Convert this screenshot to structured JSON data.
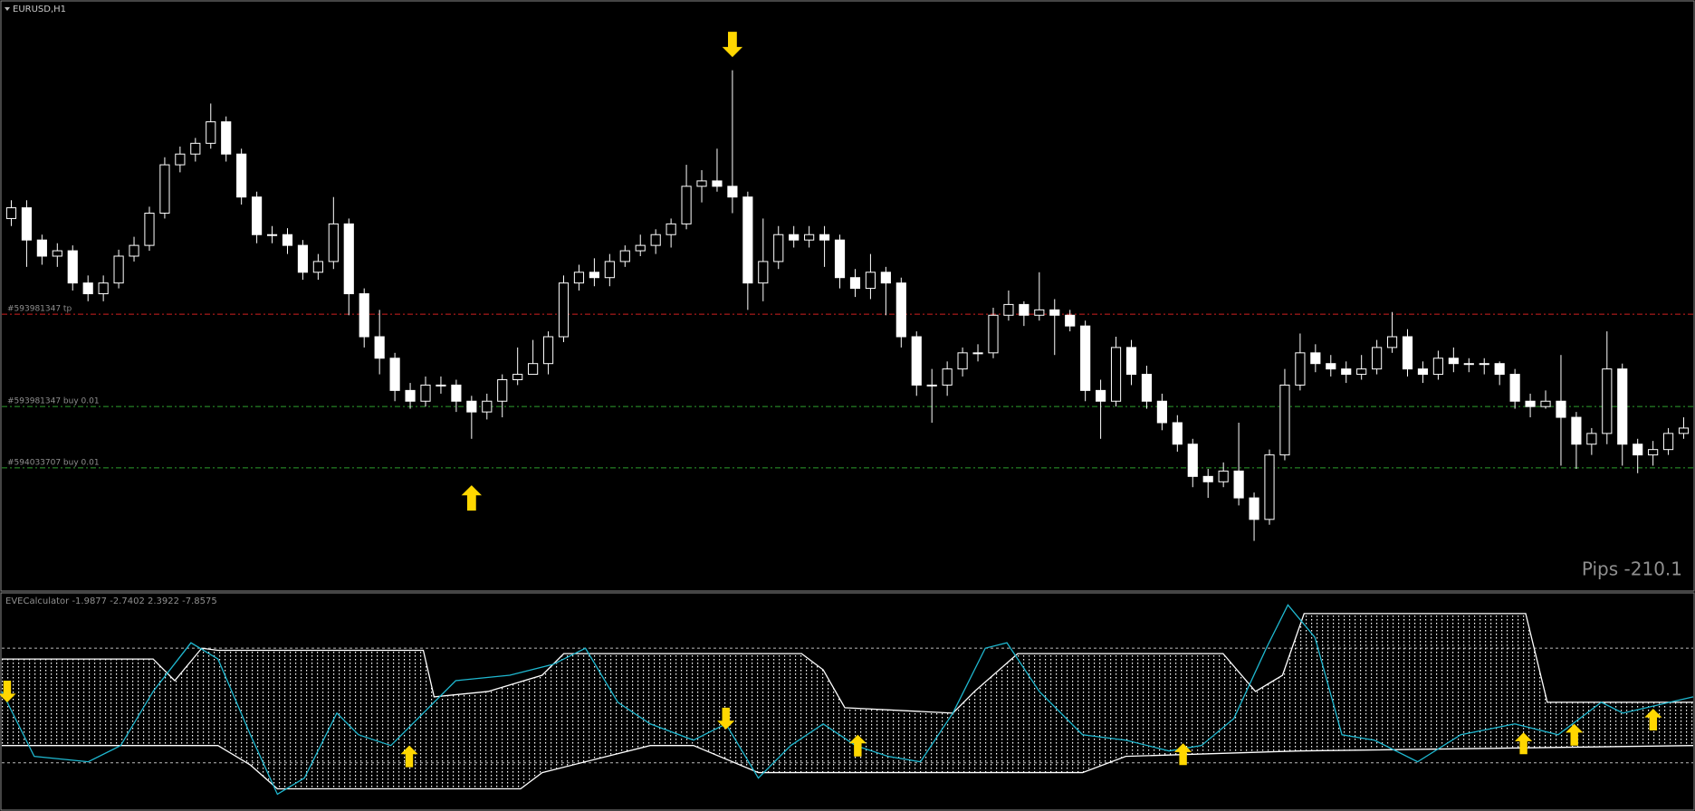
{
  "chart_data": [
    {
      "type": "candlestick",
      "title": "EURUSD,H1",
      "ylim": [
        0,
        545
      ],
      "candles": [
        [
          345,
          362,
          338,
          355
        ],
        [
          355,
          362,
          300,
          325
        ],
        [
          325,
          330,
          302,
          310
        ],
        [
          310,
          322,
          300,
          315
        ],
        [
          315,
          320,
          278,
          285
        ],
        [
          285,
          292,
          268,
          275
        ],
        [
          275,
          292,
          268,
          285
        ],
        [
          285,
          316,
          280,
          310
        ],
        [
          310,
          328,
          305,
          320
        ],
        [
          320,
          356,
          315,
          350
        ],
        [
          350,
          402,
          345,
          395
        ],
        [
          395,
          412,
          388,
          405
        ],
        [
          405,
          420,
          398,
          415
        ],
        [
          415,
          452,
          410,
          435
        ],
        [
          435,
          440,
          398,
          405
        ],
        [
          405,
          410,
          358,
          365
        ],
        [
          365,
          370,
          322,
          330
        ],
        [
          330,
          338,
          322,
          330
        ],
        [
          330,
          336,
          312,
          320
        ],
        [
          320,
          325,
          288,
          295
        ],
        [
          295,
          312,
          288,
          305
        ],
        [
          305,
          365,
          298,
          340
        ],
        [
          340,
          345,
          255,
          275
        ],
        [
          275,
          280,
          225,
          235
        ],
        [
          235,
          260,
          200,
          215
        ],
        [
          215,
          220,
          175,
          185
        ],
        [
          185,
          192,
          168,
          175
        ],
        [
          175,
          198,
          170,
          190
        ],
        [
          190,
          198,
          182,
          190
        ],
        [
          190,
          195,
          165,
          175
        ],
        [
          175,
          180,
          140,
          165
        ],
        [
          165,
          182,
          158,
          175
        ],
        [
          175,
          200,
          160,
          195
        ],
        [
          195,
          225,
          190,
          200
        ],
        [
          200,
          232,
          200,
          210
        ],
        [
          210,
          240,
          200,
          235
        ],
        [
          235,
          292,
          230,
          285
        ],
        [
          285,
          302,
          278,
          295
        ],
        [
          295,
          308,
          282,
          290
        ],
        [
          290,
          312,
          282,
          305
        ],
        [
          305,
          320,
          300,
          315
        ],
        [
          315,
          330,
          310,
          320
        ],
        [
          320,
          335,
          312,
          330
        ],
        [
          330,
          345,
          318,
          340
        ],
        [
          340,
          395,
          335,
          375
        ],
        [
          375,
          390,
          360,
          380
        ],
        [
          380,
          410,
          370,
          375
        ],
        [
          375,
          483,
          350,
          365
        ],
        [
          365,
          370,
          260,
          285
        ],
        [
          285,
          345,
          268,
          305
        ],
        [
          305,
          338,
          298,
          330
        ],
        [
          330,
          338,
          318,
          325
        ],
        [
          325,
          338,
          318,
          330
        ],
        [
          330,
          338,
          300,
          325
        ],
        [
          325,
          330,
          280,
          290
        ],
        [
          290,
          298,
          272,
          280
        ],
        [
          280,
          312,
          270,
          295
        ],
        [
          295,
          300,
          255,
          285
        ],
        [
          285,
          290,
          225,
          235
        ],
        [
          235,
          240,
          180,
          190
        ],
        [
          190,
          205,
          155,
          190
        ],
        [
          190,
          212,
          180,
          205
        ],
        [
          205,
          225,
          198,
          220
        ],
        [
          220,
          228,
          212,
          220
        ],
        [
          220,
          262,
          215,
          255
        ],
        [
          255,
          278,
          250,
          265
        ],
        [
          265,
          268,
          245,
          255
        ],
        [
          255,
          295,
          250,
          260
        ],
        [
          260,
          270,
          218,
          255
        ],
        [
          255,
          260,
          240,
          245
        ],
        [
          245,
          250,
          175,
          185
        ],
        [
          185,
          195,
          140,
          175
        ],
        [
          175,
          235,
          170,
          225
        ],
        [
          225,
          232,
          190,
          200
        ],
        [
          200,
          208,
          168,
          175
        ],
        [
          175,
          182,
          148,
          155
        ],
        [
          155,
          162,
          128,
          135
        ],
        [
          135,
          140,
          95,
          105
        ],
        [
          105,
          112,
          85,
          100
        ],
        [
          100,
          118,
          95,
          110
        ],
        [
          110,
          155,
          78,
          85
        ],
        [
          85,
          90,
          45,
          65
        ],
        [
          65,
          130,
          60,
          125
        ],
        [
          125,
          205,
          120,
          190
        ],
        [
          190,
          238,
          185,
          220
        ],
        [
          220,
          228,
          202,
          210
        ],
        [
          210,
          218,
          198,
          205
        ],
        [
          205,
          212,
          192,
          200
        ],
        [
          200,
          218,
          195,
          205
        ],
        [
          205,
          232,
          200,
          225
        ],
        [
          225,
          258,
          220,
          235
        ],
        [
          235,
          242,
          198,
          205
        ],
        [
          205,
          212,
          192,
          200
        ],
        [
          200,
          222,
          195,
          215
        ],
        [
          215,
          225,
          202,
          210
        ],
        [
          210,
          215,
          202,
          210
        ],
        [
          210,
          215,
          200,
          210
        ],
        [
          210,
          212,
          190,
          200
        ],
        [
          200,
          205,
          168,
          175
        ],
        [
          175,
          182,
          160,
          170
        ],
        [
          170,
          185,
          168,
          175
        ],
        [
          175,
          218,
          115,
          160
        ],
        [
          160,
          165,
          112,
          135
        ],
        [
          135,
          150,
          125,
          145
        ],
        [
          145,
          240,
          135,
          205
        ],
        [
          205,
          210,
          115,
          135
        ],
        [
          135,
          140,
          108,
          125
        ],
        [
          125,
          138,
          115,
          130
        ],
        [
          130,
          150,
          125,
          145
        ],
        [
          145,
          160,
          140,
          150
        ]
      ],
      "order_lines": [
        {
          "label": "#593981347 tp",
          "value": 256,
          "color": "#d02020"
        },
        {
          "label": "#593981347 buy 0.01",
          "value": 170,
          "color": "#2e9e2e"
        },
        {
          "label": "#594033707 buy 0.01",
          "value": 113,
          "color": "#2e9e2e"
        }
      ],
      "signals": [
        {
          "index": 30,
          "value": 85,
          "direction": "up"
        },
        {
          "index": 47,
          "value": 507,
          "direction": "down"
        }
      ],
      "annotation": "Pips -210.1"
    },
    {
      "type": "line",
      "title": "EVECalculator -1.9877 -2.7402 2.3922 -7.8575",
      "xlim": [
        0,
        1565
      ],
      "ylim": [
        0,
        200
      ],
      "levels": [
        148,
        42
      ],
      "series": [
        {
          "name": "upper",
          "color": "#ffffff",
          "x": [
            0,
            140,
            160,
            185,
            200,
            390,
            400,
            450,
            500,
            520,
            540,
            740,
            760,
            780,
            880,
            900,
            940,
            1130,
            1160,
            1185,
            1205,
            1410,
            1430,
            1565
          ],
          "values": [
            138,
            138,
            118,
            148,
            146,
            146,
            103,
            108,
            123,
            143,
            143,
            143,
            128,
            93,
            88,
            108,
            143,
            143,
            108,
            123,
            180,
            180,
            98,
            98
          ]
        },
        {
          "name": "lower",
          "color": "#ffffff",
          "x": [
            0,
            100,
            200,
            230,
            255,
            480,
            500,
            600,
            640,
            700,
            1000,
            1040,
            1200,
            1565
          ],
          "values": [
            58,
            58,
            58,
            40,
            18,
            18,
            33,
            58,
            58,
            33,
            33,
            48,
            53,
            58
          ]
        },
        {
          "name": "signal",
          "color": "#1fb8d0",
          "x": [
            0,
            30,
            80,
            110,
            140,
            175,
            200,
            230,
            255,
            280,
            310,
            330,
            360,
            400,
            420,
            470,
            510,
            540,
            570,
            600,
            640,
            670,
            700,
            730,
            760,
            790,
            820,
            850,
            880,
            910,
            930,
            960,
            1000,
            1040,
            1080,
            1110,
            1140,
            1170,
            1190,
            1215,
            1240,
            1270,
            1310,
            1350,
            1400,
            1440,
            1480,
            1500,
            1565
          ],
          "values": [
            108,
            48,
            43,
            58,
            108,
            153,
            138,
            68,
            13,
            28,
            88,
            68,
            58,
            98,
            118,
            123,
            133,
            148,
            98,
            78,
            63,
            78,
            28,
            58,
            78,
            58,
            48,
            43,
            88,
            148,
            153,
            108,
            68,
            63,
            53,
            58,
            83,
            148,
            188,
            158,
            68,
            63,
            43,
            68,
            78,
            68,
            98,
            88,
            103
          ]
        }
      ],
      "signals": [
        {
          "x": 5,
          "value": 108,
          "direction": "down"
        },
        {
          "x": 377,
          "value": 48,
          "direction": "up"
        },
        {
          "x": 670,
          "value": 83,
          "direction": "down"
        },
        {
          "x": 792,
          "value": 58,
          "direction": "up"
        },
        {
          "x": 1093,
          "value": 50,
          "direction": "up"
        },
        {
          "x": 1408,
          "value": 60,
          "direction": "up"
        },
        {
          "x": 1455,
          "value": 68,
          "direction": "up"
        },
        {
          "x": 1528,
          "value": 82,
          "direction": "up"
        }
      ]
    }
  ]
}
